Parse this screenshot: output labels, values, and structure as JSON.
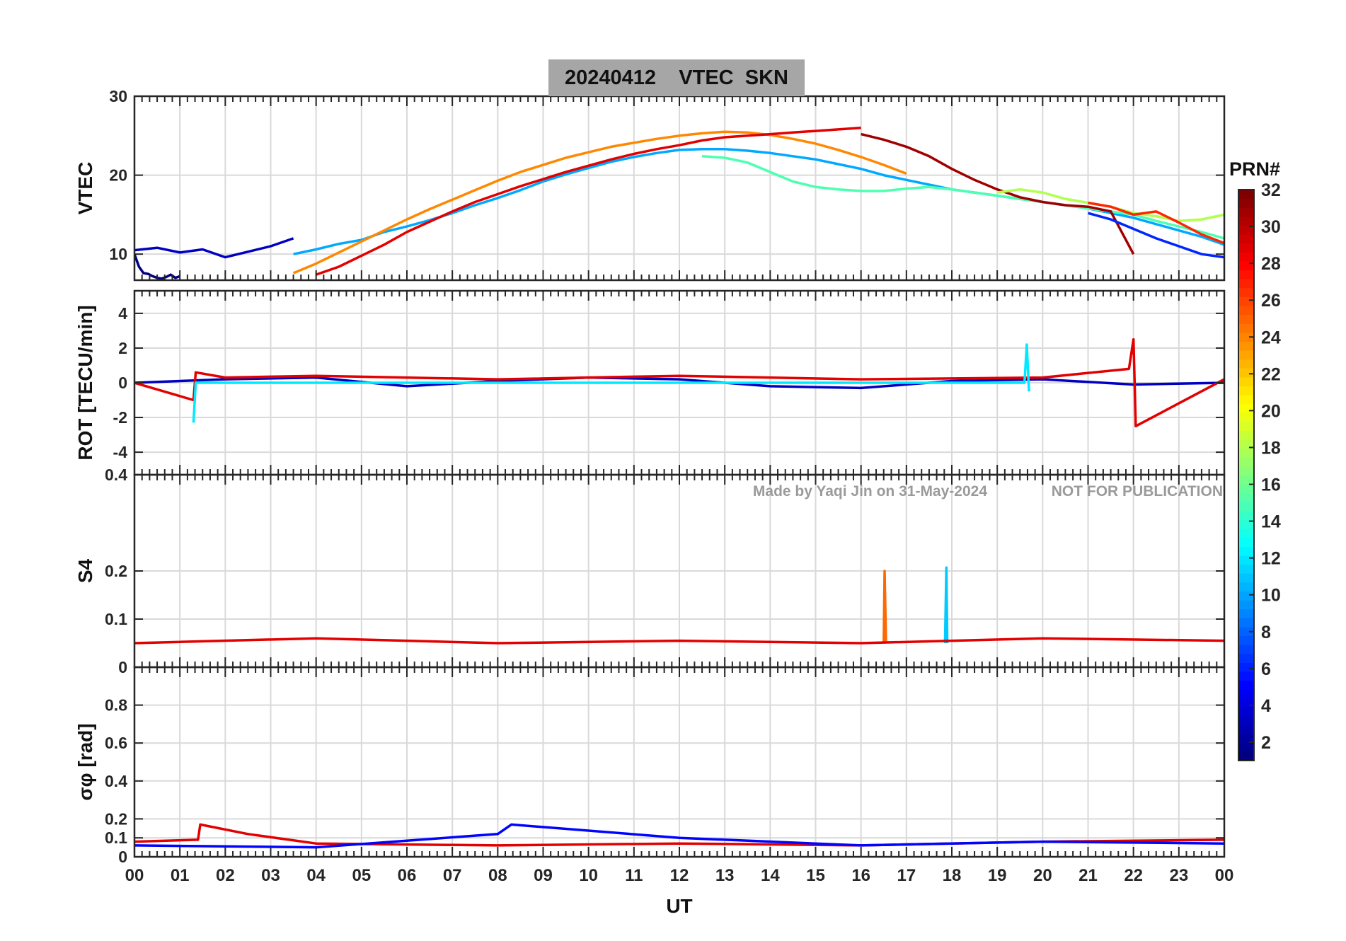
{
  "title": "20240412    VTEC  SKN",
  "watermark_left": "Made by Yaqi Jin on 31-May-2024",
  "watermark_right": "NOT FOR PUBLICATION",
  "chart_data": [
    {
      "type": "line",
      "panel": "vtec",
      "ylabel": "VTEC",
      "ylim": [
        6.7,
        30
      ],
      "yticks": [
        10,
        20,
        30
      ],
      "grid": true,
      "series_note": "many satellite tracks, colored by PRN",
      "series": [
        {
          "name": "PRN 3",
          "prn": 3,
          "x": [
            0.0,
            0.5,
            1.0,
            1.5,
            2.0,
            2.5,
            3.0,
            3.5
          ],
          "y": [
            10.5,
            10.8,
            10.2,
            10.6,
            9.6,
            10.3,
            11.0,
            12.0
          ]
        },
        {
          "name": "PRN 10",
          "prn": 10,
          "x": [
            3.5,
            4.0,
            4.5,
            5.0,
            5.5,
            6.0,
            6.5,
            7.0,
            7.5,
            8.0,
            8.5,
            9.0,
            9.5,
            10.0,
            10.5,
            11.0,
            11.5,
            12.0,
            12.5,
            13.0,
            13.5,
            14.0,
            14.5,
            15.0,
            15.5,
            16.0,
            16.5,
            17.0,
            17.5,
            18.0,
            18.5,
            19.0,
            19.5,
            20.0,
            20.5,
            21.0,
            21.5,
            22.0,
            22.5,
            23.0,
            23.5,
            24.0
          ],
          "y": [
            10.0,
            10.6,
            11.3,
            11.8,
            12.8,
            13.5,
            14.3,
            15.2,
            16.2,
            17.1,
            18.1,
            19.2,
            20.1,
            20.9,
            21.7,
            22.3,
            22.8,
            23.2,
            23.3,
            23.3,
            23.1,
            22.8,
            22.4,
            22.0,
            21.4,
            20.8,
            20.0,
            19.4,
            18.8,
            18.2,
            17.8,
            17.4,
            17.0,
            16.6,
            16.2,
            15.8,
            15.2,
            14.6,
            13.8,
            13.0,
            12.2,
            11.2
          ]
        },
        {
          "name": "PRN 24",
          "prn": 24,
          "x": [
            3.5,
            4.0,
            4.5,
            5.0,
            5.5,
            6.0,
            6.5,
            7.0,
            7.5,
            8.0,
            8.5,
            9.0,
            9.5,
            10.0,
            10.5,
            11.0,
            11.5,
            12.0,
            12.5,
            13.0,
            13.5,
            14.0,
            14.5,
            15.0,
            15.5,
            16.0,
            16.5,
            17.0
          ],
          "y": [
            7.6,
            8.8,
            10.2,
            11.6,
            13.0,
            14.4,
            15.7,
            16.9,
            18.1,
            19.3,
            20.4,
            21.3,
            22.2,
            22.9,
            23.6,
            24.1,
            24.6,
            25.0,
            25.3,
            25.5,
            25.4,
            25.1,
            24.6,
            24.0,
            23.2,
            22.3,
            21.3,
            20.2
          ]
        },
        {
          "name": "PRN 29",
          "prn": 29,
          "x": [
            4.0,
            4.5,
            5.0,
            5.5,
            6.0,
            6.5,
            7.0,
            7.5,
            8.0,
            8.5,
            9.0,
            9.5,
            10.0,
            10.5,
            11.0,
            11.5,
            12.0,
            12.5,
            13.0,
            13.5,
            14.0,
            14.5,
            15.0,
            15.5,
            16.0
          ],
          "y": [
            7.4,
            8.4,
            9.8,
            11.2,
            12.8,
            14.1,
            15.4,
            16.6,
            17.6,
            18.6,
            19.5,
            20.4,
            21.2,
            22.0,
            22.7,
            23.3,
            23.8,
            24.4,
            24.8,
            25.0,
            25.2,
            25.4,
            25.6,
            25.8,
            26.0
          ]
        },
        {
          "name": "PRN 15",
          "prn": 15,
          "x": [
            12.5,
            13.0,
            13.5,
            14.0,
            14.5,
            15.0,
            15.5,
            16.0,
            16.5,
            17.0,
            17.5,
            18.0,
            18.5,
            19.0,
            19.5,
            20.0,
            20.5,
            21.0,
            21.5,
            22.0,
            22.5,
            23.0,
            23.5,
            24.0
          ],
          "y": [
            22.4,
            22.2,
            21.6,
            20.4,
            19.2,
            18.5,
            18.2,
            18.0,
            18.0,
            18.3,
            18.5,
            18.2,
            17.8,
            17.4,
            17.0,
            16.6,
            16.2,
            15.8,
            15.4,
            15.0,
            14.2,
            13.5,
            12.8,
            12.0
          ]
        },
        {
          "name": "PRN 31",
          "prn": 31,
          "x": [
            16.0,
            16.5,
            17.0,
            17.5,
            18.0,
            18.5,
            19.0,
            19.5,
            20.0,
            20.5,
            21.0,
            21.5,
            22.0
          ],
          "y": [
            25.2,
            24.5,
            23.6,
            22.4,
            20.8,
            19.4,
            18.2,
            17.2,
            16.6,
            16.2,
            16.0,
            15.4,
            10.0
          ]
        },
        {
          "name": "PRN 1",
          "prn": 1,
          "x": [
            0.0,
            0.1,
            0.2,
            0.3,
            0.4,
            0.5,
            0.6,
            0.7,
            0.8,
            0.9,
            1.0
          ],
          "y": [
            10.0,
            8.4,
            7.6,
            7.5,
            7.2,
            7.0,
            6.9,
            7.1,
            7.4,
            7.0,
            7.2
          ]
        },
        {
          "name": "PRN 18",
          "prn": 18,
          "x": [
            19.0,
            19.5,
            20.0,
            20.5,
            21.0,
            21.5,
            22.0,
            22.5,
            23.0,
            23.5,
            24.0
          ],
          "y": [
            17.8,
            18.2,
            17.8,
            17.0,
            16.5,
            16.0,
            15.2,
            14.8,
            14.2,
            14.4,
            15.0
          ]
        },
        {
          "name": "PRN 6",
          "prn": 6,
          "x": [
            21.0,
            21.5,
            22.0,
            22.5,
            23.0,
            23.5,
            24.0
          ],
          "y": [
            15.2,
            14.4,
            13.2,
            12.0,
            11.0,
            10.0,
            9.6
          ]
        },
        {
          "name": "PRN 27",
          "prn": 27,
          "x": [
            21.0,
            21.5,
            22.0,
            22.5,
            23.0,
            23.5,
            24.0
          ],
          "y": [
            16.5,
            16.0,
            15.0,
            15.4,
            14.0,
            12.5,
            11.4
          ]
        }
      ]
    },
    {
      "type": "line",
      "panel": "rot",
      "ylabel": "ROT [TECU/min]",
      "ylim": [
        -5.3,
        5.3
      ],
      "yticks": [
        -4,
        -2,
        0,
        2,
        4
      ],
      "grid": true,
      "series_note": "noisy traces around 0, colored by PRN",
      "series": [
        {
          "name": "PRN 3",
          "prn": 3,
          "x": [
            0.0,
            2.0,
            4.0,
            6.0,
            8.0,
            10.0,
            12.0,
            14.0,
            16.0,
            18.0,
            20.0,
            22.0,
            24.0
          ],
          "y": [
            0.0,
            0.2,
            0.3,
            -0.2,
            0.1,
            0.3,
            0.2,
            -0.2,
            -0.3,
            0.1,
            0.2,
            -0.1,
            0.0
          ]
        },
        {
          "name": "PRN 29",
          "prn": 29,
          "x": [
            0.0,
            1.3,
            1.35,
            2.0,
            4.0,
            8.0,
            12.0,
            16.0,
            20.0,
            21.9,
            22.0,
            22.05,
            24.0
          ],
          "y": [
            0.0,
            -1.0,
            0.6,
            0.3,
            0.4,
            0.2,
            0.4,
            0.2,
            0.3,
            0.8,
            2.5,
            -2.5,
            0.2
          ]
        },
        {
          "name": "PRN 12",
          "prn": 12,
          "x": [
            1.3,
            1.35,
            19.6,
            19.65,
            19.7
          ],
          "y": [
            -2.3,
            0.0,
            0.0,
            2.2,
            -0.5
          ]
        }
      ]
    },
    {
      "type": "line",
      "panel": "s4",
      "ylabel": "S4",
      "ylim": [
        0,
        0.4
      ],
      "yticks": [
        0,
        0.1,
        0.2,
        0.4
      ],
      "grid": true,
      "series_note": "baseline ~0.05 with spikes, colored by PRN",
      "series": [
        {
          "name": "PRN 25",
          "prn": 25,
          "x": [
            16.5,
            16.52,
            16.55
          ],
          "y": [
            0.05,
            0.2,
            0.05
          ]
        },
        {
          "name": "PRN 11",
          "prn": 11,
          "x": [
            17.85,
            17.88,
            17.9
          ],
          "y": [
            0.05,
            0.207,
            0.05
          ]
        },
        {
          "name": "PRN 29",
          "prn": 29,
          "x": [
            0.0,
            4.0,
            8.0,
            12.0,
            16.0,
            20.0,
            24.0
          ],
          "y": [
            0.05,
            0.06,
            0.05,
            0.055,
            0.05,
            0.06,
            0.055
          ]
        }
      ]
    },
    {
      "type": "line",
      "panel": "sigma_phi",
      "ylabel": "σφ [rad]",
      "ylim": [
        0,
        1
      ],
      "yticks": [
        0,
        0.1,
        0.2,
        0.4,
        0.6,
        0.8
      ],
      "grid": true,
      "series_note": "low values 0.03–0.18, colored by PRN",
      "series": [
        {
          "name": "PRN 29",
          "prn": 29,
          "x": [
            0.0,
            1.4,
            1.45,
            2.5,
            4.0,
            8.0,
            12.0,
            16.0,
            20.0,
            24.0
          ],
          "y": [
            0.08,
            0.09,
            0.17,
            0.12,
            0.07,
            0.06,
            0.07,
            0.06,
            0.08,
            0.09
          ]
        },
        {
          "name": "PRN 5",
          "prn": 5,
          "x": [
            0.0,
            4.0,
            8.0,
            8.3,
            12.0,
            16.0,
            20.0,
            24.0
          ],
          "y": [
            0.06,
            0.05,
            0.12,
            0.17,
            0.1,
            0.06,
            0.08,
            0.07
          ]
        }
      ]
    }
  ],
  "shared_x": {
    "xlabel": "UT",
    "xlim": [
      0,
      24
    ],
    "xticks": [
      "00",
      "01",
      "02",
      "03",
      "04",
      "05",
      "06",
      "07",
      "08",
      "09",
      "10",
      "11",
      "12",
      "13",
      "14",
      "15",
      "16",
      "17",
      "18",
      "19",
      "20",
      "21",
      "22",
      "23",
      "00"
    ]
  },
  "colorbar": {
    "label": "PRN#",
    "ticks": [
      2,
      4,
      6,
      8,
      10,
      12,
      14,
      16,
      18,
      20,
      22,
      24,
      26,
      28,
      30,
      32
    ],
    "range": [
      1,
      32
    ],
    "colormap": "jet"
  }
}
